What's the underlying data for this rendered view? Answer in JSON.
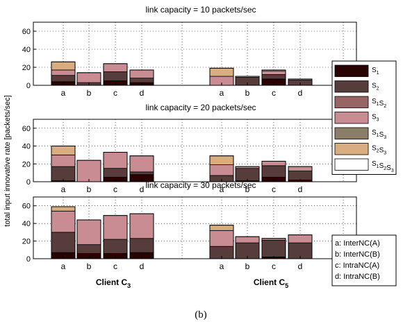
{
  "figure_label": "(b)",
  "ylabel": "total input innovative rate [packets/sec]",
  "client_labels": [
    {
      "base": "Client C",
      "sub": "3"
    },
    {
      "base": "Client C",
      "sub": "5"
    }
  ],
  "legend": {
    "series": [
      {
        "id": "S1",
        "parts": [
          [
            "S",
            "1"
          ]
        ],
        "color": "#2a0202"
      },
      {
        "id": "S2",
        "parts": [
          [
            "S",
            "2"
          ]
        ],
        "color": "#573c3c"
      },
      {
        "id": "S1S2",
        "parts": [
          [
            "S",
            "1"
          ],
          [
            "S",
            "2"
          ]
        ],
        "color": "#986464"
      },
      {
        "id": "S3",
        "parts": [
          [
            "S",
            "3"
          ]
        ],
        "color": "#c98c92"
      },
      {
        "id": "S1S3",
        "parts": [
          [
            "S",
            "1"
          ],
          [
            "S",
            "3"
          ]
        ],
        "color": "#8b7e68"
      },
      {
        "id": "S2S3",
        "parts": [
          [
            "S",
            "2"
          ],
          [
            "S",
            "3"
          ]
        ],
        "color": "#d9ad7f"
      },
      {
        "id": "S1S2S3",
        "parts": [
          [
            "S",
            "1"
          ],
          [
            "S",
            "2"
          ],
          [
            "S",
            "3"
          ]
        ],
        "color": "#ffffff"
      }
    ],
    "schemes": [
      "a: InterNC(A)",
      "b: InterNC(B)",
      "c: IntraNC(A)",
      "d: IntraNC(B)"
    ]
  },
  "chart_data": [
    {
      "type": "bar",
      "stacked": true,
      "title": "link capacity = 10 packets/sec",
      "categories": [
        "a",
        "b",
        "c",
        "d",
        "a",
        "b",
        "c",
        "d"
      ],
      "groups": [
        "Client C3",
        "Client C5"
      ],
      "ylim": [
        0,
        70
      ],
      "yticks": [
        0,
        20,
        40,
        60
      ],
      "grid": true,
      "series": [
        {
          "name": "S1",
          "values": [
            4,
            0,
            5,
            3,
            0,
            0,
            7,
            0
          ]
        },
        {
          "name": "S2",
          "values": [
            7,
            3,
            10,
            5,
            0,
            9,
            5,
            6
          ]
        },
        {
          "name": "S1S2",
          "values": [
            0,
            0,
            0,
            0,
            0,
            0,
            0,
            0
          ]
        },
        {
          "name": "S3",
          "values": [
            6,
            11,
            9,
            9,
            10,
            0,
            4,
            0
          ]
        },
        {
          "name": "S1S3",
          "values": [
            0,
            0,
            0,
            0,
            0,
            0,
            0,
            0
          ]
        },
        {
          "name": "S2S3",
          "values": [
            9,
            0,
            0,
            0,
            9,
            0,
            0,
            0
          ]
        },
        {
          "name": "S1S2S3",
          "values": [
            0,
            0,
            0,
            0,
            0,
            1,
            1,
            1
          ]
        }
      ]
    },
    {
      "type": "bar",
      "stacked": true,
      "title": "link capacity = 20 packets/sec",
      "categories": [
        "a",
        "b",
        "c",
        "d",
        "a",
        "b",
        "c",
        "d"
      ],
      "groups": [
        "Client C3",
        "Client C5"
      ],
      "ylim": [
        0,
        70
      ],
      "yticks": [
        0,
        20,
        40,
        60
      ],
      "grid": true,
      "series": [
        {
          "name": "S1",
          "values": [
            1,
            0,
            5,
            8,
            0,
            1,
            5,
            2
          ]
        },
        {
          "name": "S2",
          "values": [
            16,
            0,
            10,
            3,
            7,
            14,
            13,
            10
          ]
        },
        {
          "name": "S1S2",
          "values": [
            0,
            0,
            0,
            0,
            0,
            0,
            0,
            0
          ]
        },
        {
          "name": "S3",
          "values": [
            13,
            24,
            18,
            18,
            12,
            2,
            5,
            5
          ]
        },
        {
          "name": "S1S3",
          "values": [
            0,
            0,
            0,
            0,
            0,
            0,
            0,
            0
          ]
        },
        {
          "name": "S2S3",
          "values": [
            10,
            0,
            0,
            0,
            10,
            0,
            0,
            0
          ]
        },
        {
          "name": "S1S2S3",
          "values": [
            0,
            0,
            0,
            0,
            0,
            0,
            0,
            0
          ]
        }
      ]
    },
    {
      "type": "bar",
      "stacked": true,
      "title": "link capacity = 30 packets/sec",
      "categories": [
        "a",
        "b",
        "c",
        "d",
        "a",
        "b",
        "c",
        "d"
      ],
      "groups": [
        "Client C3",
        "Client C5"
      ],
      "ylim": [
        0,
        70
      ],
      "yticks": [
        0,
        20,
        40,
        60
      ],
      "grid": true,
      "series": [
        {
          "name": "S1",
          "values": [
            7,
            6,
            6,
            7,
            0,
            0,
            2,
            0
          ]
        },
        {
          "name": "S2",
          "values": [
            23,
            10,
            16,
            16,
            14,
            18,
            19,
            18
          ]
        },
        {
          "name": "S1S2",
          "values": [
            0,
            0,
            0,
            0,
            0,
            0,
            0,
            0
          ]
        },
        {
          "name": "S3",
          "values": [
            24,
            28,
            27,
            28,
            18,
            7,
            2,
            9
          ]
        },
        {
          "name": "S1S3",
          "values": [
            0,
            0,
            0,
            0,
            0,
            0,
            0,
            0
          ]
        },
        {
          "name": "S2S3",
          "values": [
            5,
            0,
            0,
            0,
            6,
            0,
            0,
            0
          ]
        },
        {
          "name": "S1S2S3",
          "values": [
            0,
            0,
            0,
            0,
            0,
            0,
            0,
            0
          ]
        }
      ]
    }
  ]
}
